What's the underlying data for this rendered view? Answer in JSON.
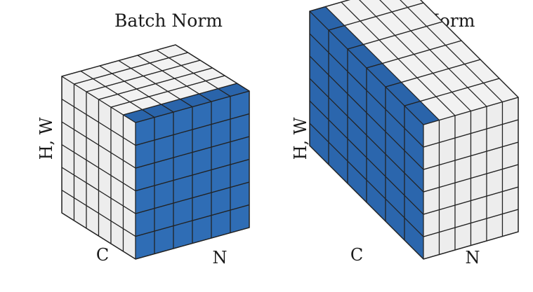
{
  "panels": [
    {
      "id": "batch-norm",
      "title": "Batch Norm",
      "labels": {
        "height_width": "H, W",
        "channel": "C",
        "batch": "N"
      },
      "highlight": {
        "face": "front",
        "axis": "C",
        "slice": "last"
      }
    },
    {
      "id": "layer-norm",
      "title": "Layer Norm",
      "labels": {
        "height_width": "H, W",
        "channel": "C",
        "batch": "N"
      },
      "highlight": {
        "face": "side",
        "axis": "N",
        "slice": "first"
      }
    }
  ],
  "grid": {
    "n": 6,
    "c": 6,
    "hw": 6
  },
  "colors": {
    "highlight_front": "#2f6db5",
    "highlight_side": "#2b66ad",
    "highlight_top": "#2a64aa",
    "cube_face": "#ededed",
    "cube_top": "#f2f2f2",
    "grid_line": "#222222"
  }
}
